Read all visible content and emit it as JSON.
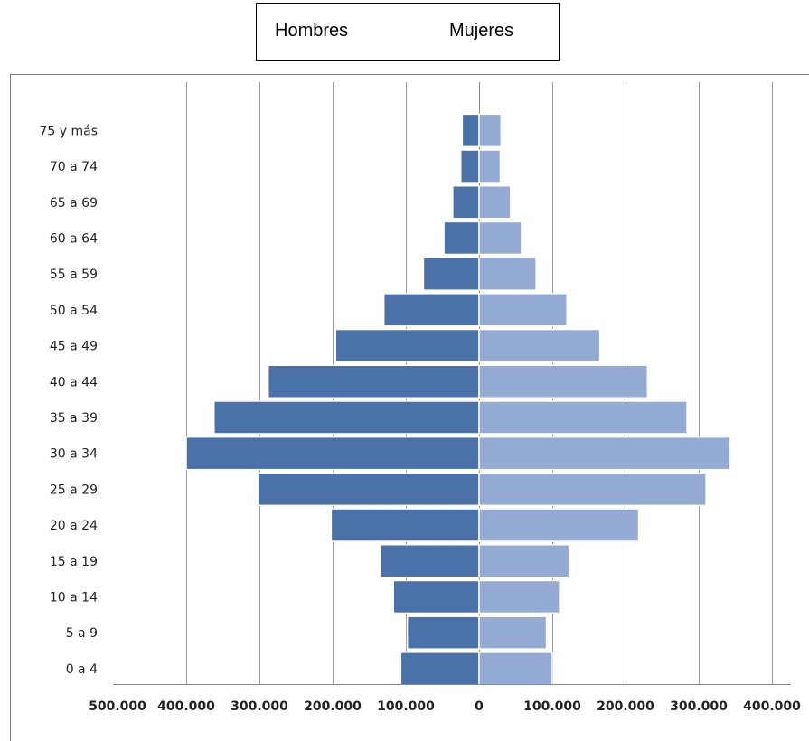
{
  "legend": {
    "men": "Hombres",
    "women": "Mujeres"
  },
  "chart_data": {
    "type": "bar",
    "orientation": "horizontal",
    "subtype": "population-pyramid",
    "categories": [
      "0 a 4",
      "5 a 9",
      "10 a 14",
      "15 a 19",
      "20 a 24",
      "25 a 29",
      "30 a 34",
      "35 a 39",
      "40 a 44",
      "45 a 49",
      "50 a 54",
      "55 a 59",
      "60 a 64",
      "65 a 69",
      "70 a 74",
      "75 y más"
    ],
    "series": [
      {
        "name": "Hombres",
        "color": "#4a72a8",
        "side": "left",
        "values": [
          107000,
          98000,
          117000,
          135000,
          202000,
          302000,
          400000,
          362000,
          288000,
          196000,
          130000,
          76000,
          48000,
          36000,
          25000,
          23000
        ]
      },
      {
        "name": "Mujeres",
        "color": "#94abd3",
        "side": "right",
        "values": [
          100000,
          92000,
          110000,
          123000,
          218000,
          310000,
          343000,
          284000,
          230000,
          165000,
          120000,
          78000,
          58000,
          43000,
          29000,
          30000
        ]
      }
    ],
    "x_ticks": [
      "500.000",
      "400.000",
      "300.000",
      "200.000",
      "100.000",
      "0",
      "100.000",
      "200.000",
      "300.000",
      "400.000"
    ],
    "xlim": [
      -400000,
      400000
    ],
    "grid": true,
    "legend_position": "top"
  }
}
